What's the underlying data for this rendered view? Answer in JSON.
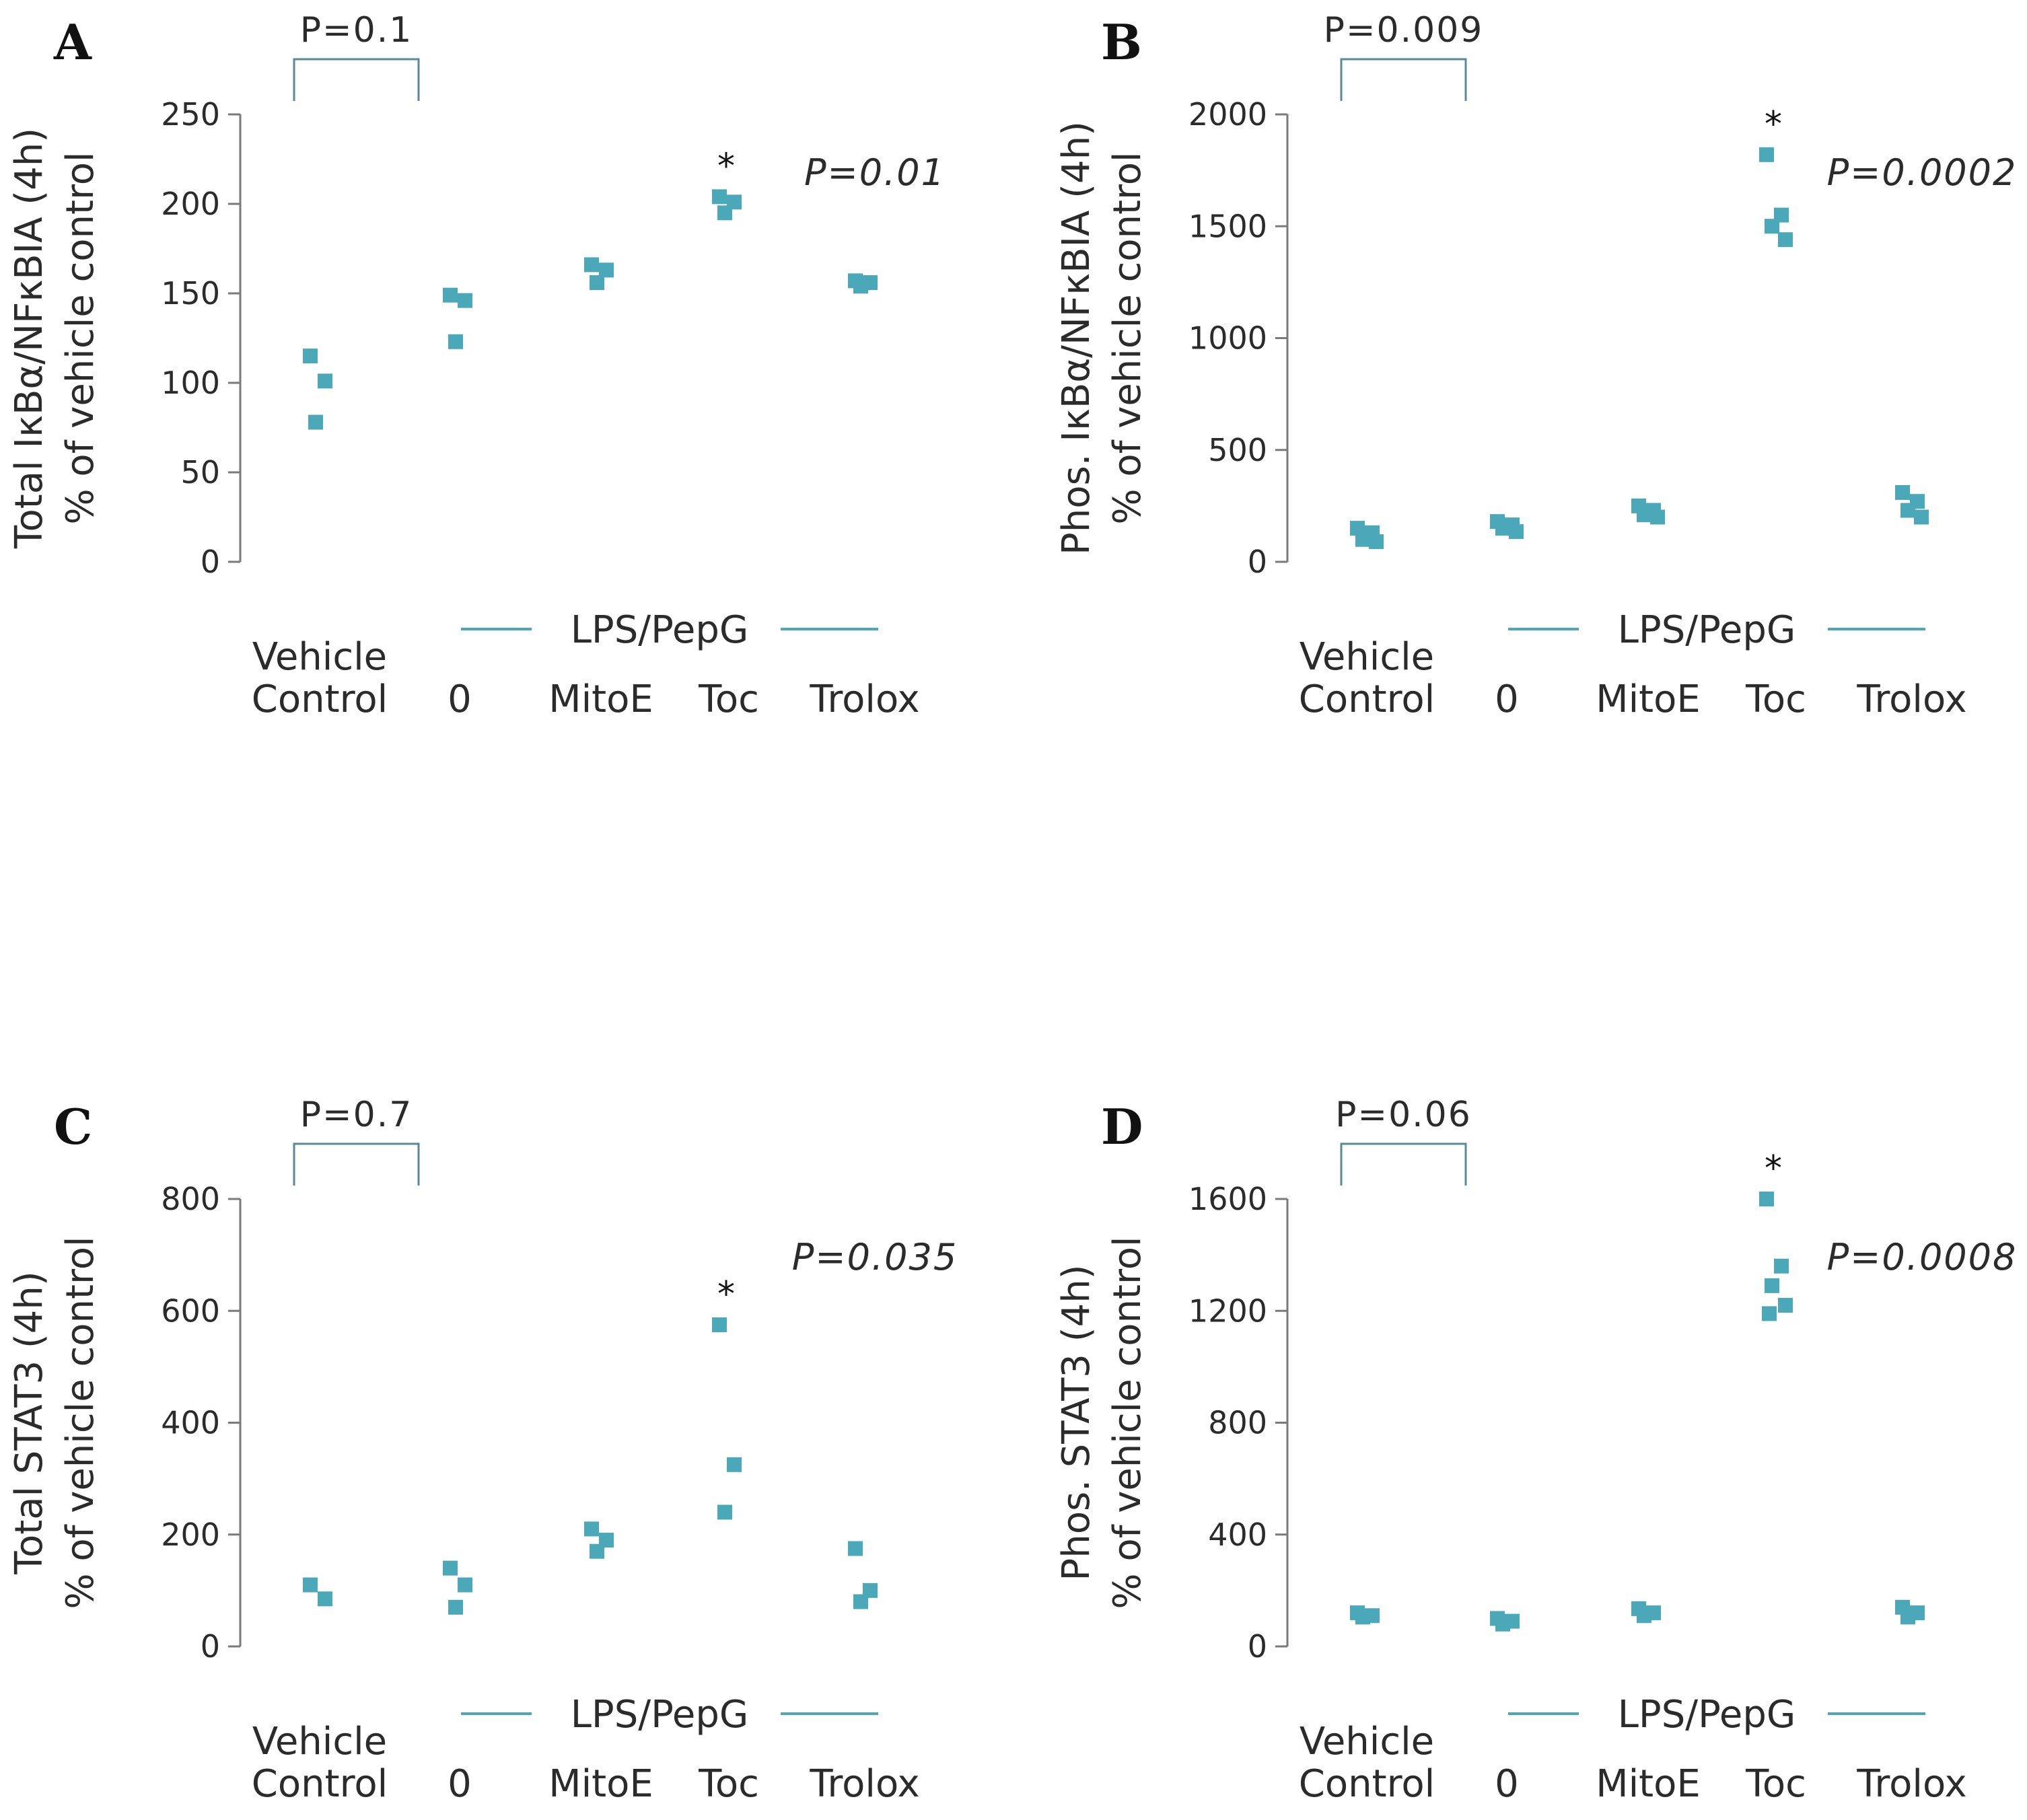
{
  "colors": {
    "marker": "#4aa8b8",
    "axis": "#7a7a7a",
    "bracket": "#5a8a9a",
    "group_line": "#4aa8b8"
  },
  "categories": [
    [
      "Vehicle",
      "Control"
    ],
    [
      "0"
    ],
    [
      "MitoE"
    ],
    [
      "Toc"
    ],
    [
      "Trolox"
    ]
  ],
  "group_label": "LPS/PepG",
  "chart_data": [
    {
      "type": "scatter",
      "panel": "A",
      "ylabel": [
        "Total IκBα/NFκBIA (4h)",
        "% of vehicle control"
      ],
      "ylim": [
        0,
        250
      ],
      "yticks": [
        0,
        50,
        100,
        150,
        200,
        250
      ],
      "bracket_label": "P=0.1",
      "p_value": "P=0.01",
      "star": "*",
      "star_category": 3,
      "series": [
        {
          "name": "Vehicle Control",
          "values": [
            115,
            101,
            78
          ]
        },
        {
          "name": "0",
          "values": [
            149,
            146,
            123
          ]
        },
        {
          "name": "MitoE",
          "values": [
            166,
            163,
            156
          ]
        },
        {
          "name": "Toc",
          "values": [
            204,
            201,
            195
          ]
        },
        {
          "name": "Trolox",
          "values": [
            157,
            156,
            154
          ]
        }
      ]
    },
    {
      "type": "scatter",
      "panel": "B",
      "ylabel": [
        "Phos. IκBα/NFκBIA (4h)",
        "% of vehicle control"
      ],
      "ylim": [
        0,
        2000
      ],
      "yticks": [
        0,
        500,
        1000,
        1500,
        2000
      ],
      "bracket_label": "P=0.009",
      "p_value": "P=0.0002",
      "star": "*",
      "star_category": 3,
      "series": [
        {
          "name": "Vehicle Control",
          "values": [
            150,
            130,
            100,
            90
          ]
        },
        {
          "name": "0",
          "values": [
            180,
            165,
            150,
            135
          ]
        },
        {
          "name": "MitoE",
          "values": [
            250,
            230,
            210,
            200
          ]
        },
        {
          "name": "Toc",
          "values": [
            1820,
            1550,
            1500,
            1440
          ]
        },
        {
          "name": "Trolox",
          "values": [
            310,
            270,
            230,
            200
          ]
        }
      ]
    },
    {
      "type": "scatter",
      "panel": "C",
      "ylabel": [
        "Total STAT3 (4h)",
        "% of vehicle control"
      ],
      "ylim": [
        0,
        800
      ],
      "yticks": [
        0,
        200,
        400,
        600,
        800
      ],
      "bracket_label": "P=0.7",
      "p_value": "P=0.035",
      "star": "*",
      "star_category": 3,
      "series": [
        {
          "name": "Vehicle Control",
          "values": [
            110,
            85
          ]
        },
        {
          "name": "0",
          "values": [
            140,
            110,
            70
          ]
        },
        {
          "name": "MitoE",
          "values": [
            210,
            190,
            170
          ]
        },
        {
          "name": "Toc",
          "values": [
            575,
            325,
            240
          ]
        },
        {
          "name": "Trolox",
          "values": [
            175,
            100,
            80
          ]
        }
      ]
    },
    {
      "type": "scatter",
      "panel": "D",
      "ylabel": [
        "Phos. STAT3 (4h)",
        "% of vehicle control"
      ],
      "ylim": [
        0,
        1600
      ],
      "yticks": [
        0,
        400,
        800,
        1200,
        1600
      ],
      "bracket_label": "P=0.06",
      "p_value": "P=0.0008",
      "star": "*",
      "star_category": 3,
      "series": [
        {
          "name": "Vehicle Control",
          "values": [
            120,
            110,
            105
          ]
        },
        {
          "name": "0",
          "values": [
            100,
            90,
            80
          ]
        },
        {
          "name": "MitoE",
          "values": [
            135,
            120,
            110
          ]
        },
        {
          "name": "Toc",
          "values": [
            1600,
            1360,
            1290,
            1220,
            1190
          ]
        },
        {
          "name": "Trolox",
          "values": [
            140,
            120,
            105
          ]
        }
      ]
    }
  ]
}
